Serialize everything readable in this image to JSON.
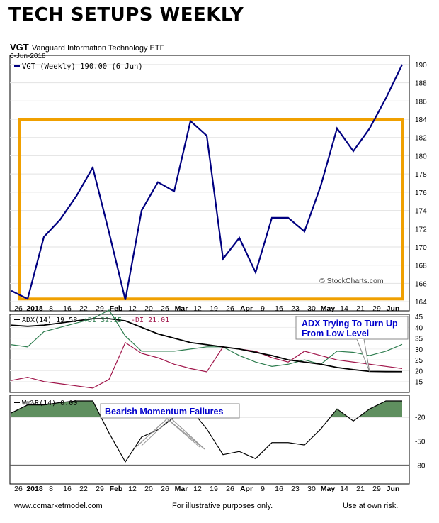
{
  "headline": "TECH SETUPS WEEKLY",
  "symbol": "VGT",
  "fund_name": "Vanguard Information Technology ETF",
  "date": "6-Jun-2018",
  "price_legend": "VGT (Weekly) 190.00 (6 Jun)",
  "watermark": "© StockCharts.com",
  "adx_legend": {
    "adx": "ADX(14) 19.58",
    "plus_di": "+DI 32.15",
    "minus_di": "-DI 21.01"
  },
  "wmr_legend": "Wm%R(14) 0.00",
  "annotations": {
    "adx_note": "ADX Trying To Turn Up From Low Level",
    "adx_note_lines": [
      "ADX Trying To Turn Up",
      "From Low Level"
    ],
    "momentum_note": "Bearish Momentum Failures"
  },
  "footer": {
    "left": "www.ccmarketmodel.com",
    "center": "For illustrative purposes only.",
    "right": "Use at own risk."
  },
  "colors": {
    "price": "#000080",
    "box": "#f0a000",
    "adx": "#000000",
    "plus_di": "#2e7d4f",
    "minus_di": "#a0154a",
    "wmr_fill": "#5f8f5f",
    "annotation": "#0000cc"
  },
  "chart_data": {
    "type": "line",
    "x_labels": [
      "26",
      "2018",
      "8",
      "16",
      "22",
      "29",
      "Feb",
      "12",
      "20",
      "26",
      "Mar",
      "12",
      "19",
      "26",
      "Apr",
      "9",
      "16",
      "23",
      "30",
      "May",
      "14",
      "21",
      "29",
      "Jun"
    ],
    "bold_labels": [
      "2018",
      "Feb",
      "Mar",
      "Apr",
      "May",
      "Jun"
    ],
    "price": {
      "name": "VGT (Weekly)",
      "ylim": [
        163,
        191
      ],
      "y_ticks": [
        164,
        166,
        168,
        170,
        172,
        174,
        176,
        178,
        180,
        182,
        184,
        186,
        188,
        190
      ],
      "values": [
        165.2,
        164.3,
        171.1,
        173.0,
        175.6,
        178.7,
        171.6,
        164.2,
        174.0,
        177.1,
        176.1,
        183.8,
        182.2,
        168.7,
        171.0,
        167.2,
        173.2,
        173.2,
        171.7,
        176.7,
        183.0,
        180.5,
        183.0,
        186.3,
        190.0
      ],
      "box": {
        "low": 164.3,
        "high": 184.0
      }
    },
    "adx": {
      "ylim": [
        10,
        46
      ],
      "y_ticks": [
        15,
        20,
        25,
        30,
        35,
        40,
        45
      ],
      "adx": [
        41,
        40.5,
        41,
        42,
        43,
        44,
        44,
        43,
        40,
        37,
        35,
        33,
        32,
        31,
        30,
        28.5,
        27,
        25,
        24,
        23,
        21.5,
        20.5,
        19.7,
        19.6,
        19.58
      ],
      "plus_di": [
        32,
        31,
        38,
        40,
        42,
        44,
        48,
        36,
        29,
        29,
        29,
        30,
        31,
        31,
        27,
        24,
        22,
        23,
        25,
        23,
        29,
        28.5,
        27,
        29,
        32.15
      ],
      "minus_di": [
        15.5,
        17,
        15,
        14,
        13,
        12,
        16,
        33,
        28,
        26,
        23,
        21,
        19.5,
        31,
        30,
        29,
        26,
        24,
        29,
        27,
        25,
        24,
        23,
        22,
        21.01
      ]
    },
    "williams_r": {
      "ylim": [
        -100,
        0
      ],
      "y_ticks": [
        -20,
        -50,
        -80
      ],
      "values": [
        -15,
        -5,
        -5,
        -2,
        0,
        0,
        -40,
        -76,
        -45,
        -36,
        -20,
        -10,
        -35,
        -67,
        -63,
        -72,
        -52,
        -52,
        -55,
        -35,
        -10,
        -25,
        -10,
        0,
        0
      ]
    }
  }
}
